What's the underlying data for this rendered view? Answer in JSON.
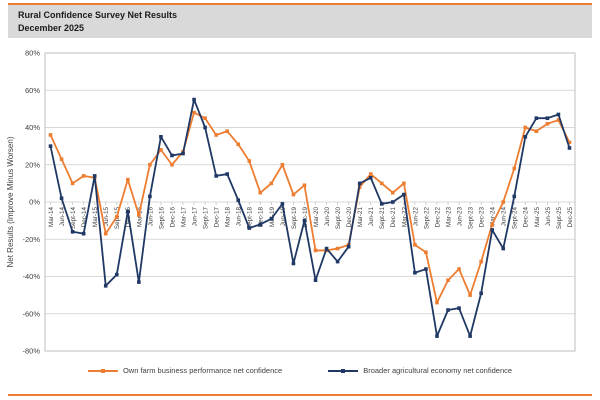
{
  "banner": {
    "title": "Rural Confidence Survey Net Results",
    "subtitle": "December 2025"
  },
  "chart_data": {
    "type": "line",
    "title": "Rural Confidence Survey Net Results",
    "subtitle": "December 2025",
    "ylabel": "Net Results (Improve Minus Worsen)",
    "xlabel": "",
    "ylim": [
      -80,
      80
    ],
    "grid": true,
    "legend_position": "bottom",
    "ytick_values": [
      80,
      60,
      40,
      20,
      0,
      -20,
      -40,
      -60,
      -80
    ],
    "ytick_labels": [
      "80%",
      "60%",
      "40%",
      "20%",
      "0%",
      "-20%",
      "-40%",
      "-60%",
      "-80%"
    ],
    "categories": [
      "Mar-14",
      "Jun-14",
      "Sept-14",
      "Dec-14",
      "Mar-15",
      "Jun-15",
      "Sept-15",
      "Dec-15",
      "Mar-16",
      "Jun-16",
      "Sept-16",
      "Dec-16",
      "Mar-17",
      "Jun-17",
      "Sept-17",
      "Dec-17",
      "Mar-18",
      "Jun-18",
      "Sept-18",
      "Dec-18",
      "Mar-19",
      "Jun-19",
      "Sept-19",
      "Dec-19",
      "Mar-20",
      "Jun-20",
      "Sept-20",
      "Dec-20",
      "Mar-21",
      "Jun-21",
      "Sept-21",
      "Dec-21",
      "Mar-22",
      "Jun-22",
      "Sept-22",
      "Dec-22",
      "Mar-23",
      "Jun-23",
      "Sept-23",
      "Dec-23",
      "Mar-24",
      "Jun-24",
      "Sept-24",
      "Dec-24",
      "Mar-25",
      "Jun-25",
      "Sept-25",
      "Dec-25"
    ],
    "series": [
      {
        "name": "Own farm business performance net confidence",
        "color": "#ED7D31",
        "values": [
          36,
          23,
          10,
          14,
          13,
          -17,
          -8,
          12,
          -7,
          20,
          28,
          20,
          27,
          48,
          45,
          36,
          38,
          31,
          22,
          5,
          10,
          20,
          4,
          9,
          -26,
          -26,
          -25,
          -23,
          8,
          15,
          10,
          5,
          10,
          -23,
          -27,
          -54,
          -42,
          -36,
          -50,
          -32,
          -12,
          0,
          18,
          40,
          38,
          42,
          44,
          32
        ]
      },
      {
        "name": "Broader agricultural economy net confidence",
        "color": "#203864",
        "values": [
          30,
          2,
          -16,
          -17,
          14,
          -45,
          -39,
          -5,
          -43,
          3,
          35,
          25,
          26,
          55,
          40,
          14,
          15,
          1,
          -14,
          -12,
          -9,
          -1,
          -33,
          -10,
          -42,
          -25,
          -32,
          -24,
          10,
          13,
          -1,
          0,
          4,
          -38,
          -36,
          -72,
          -58,
          -57,
          -72,
          -49,
          -15,
          -25,
          3,
          35,
          45,
          45,
          47,
          29
        ]
      }
    ]
  },
  "colors": {
    "accent_rule": "#ED7D31",
    "banner_bg": "#D9D9D9",
    "grid": "#D9D9D9",
    "plot_border": "#BFBFBF",
    "tick_text": "#404040",
    "axis_title_text": "#404040"
  }
}
